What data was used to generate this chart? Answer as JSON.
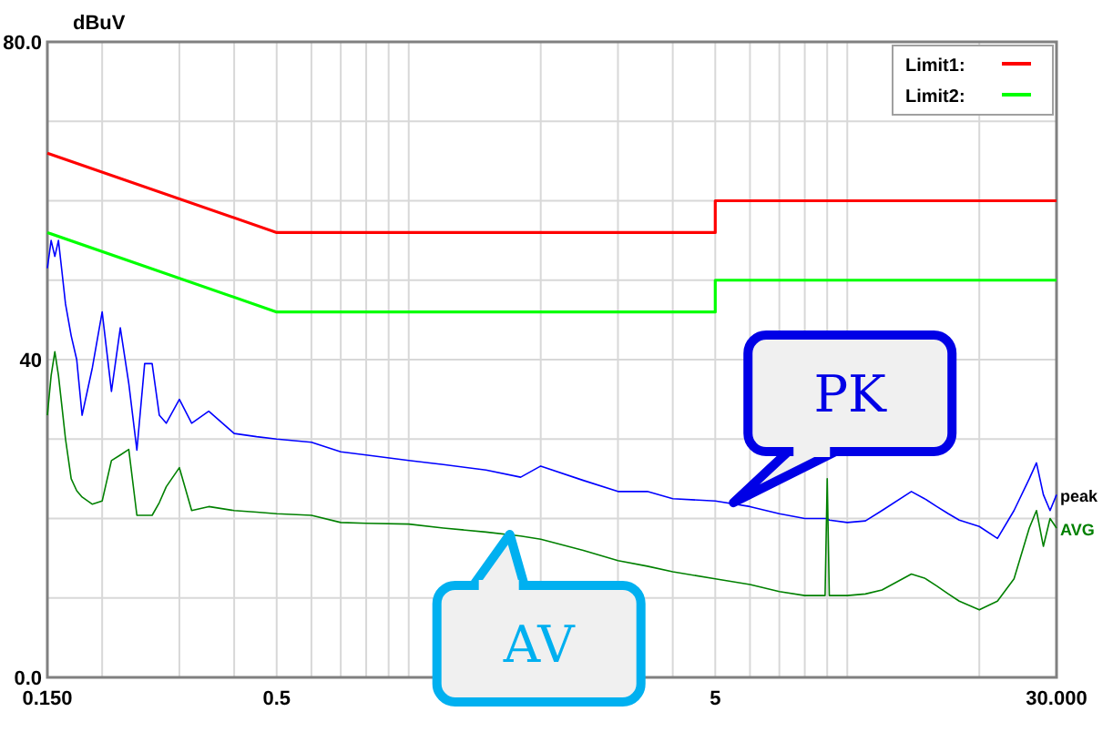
{
  "chart_data": {
    "type": "line",
    "ylabel": "dBuV",
    "log": "x",
    "grid": true,
    "legend": "top right",
    "xlim": [
      0.15,
      30
    ],
    "ylim": [
      0,
      80
    ],
    "xticks": [
      {
        "value": 0.15,
        "label": "0.150"
      },
      {
        "value": 0.2,
        "label": null
      },
      {
        "value": 0.3,
        "label": null
      },
      {
        "value": 0.4,
        "label": null
      },
      0.5,
      {
        "value": 0.6,
        "label": null
      },
      {
        "value": 0.7,
        "label": null
      },
      {
        "value": 0.8,
        "label": null
      },
      {
        "value": 0.9,
        "label": null
      },
      {
        "value": 1,
        "label": null
      },
      {
        "value": 2,
        "label": null
      },
      {
        "value": 3,
        "label": null
      },
      {
        "value": 4,
        "label": null
      },
      5,
      {
        "value": 6,
        "label": null
      },
      {
        "value": 7,
        "label": null
      },
      {
        "value": 8,
        "label": null
      },
      {
        "value": 9,
        "label": null
      },
      {
        "value": 10,
        "label": null
      },
      {
        "value": 20,
        "label": null
      },
      {
        "value": 30,
        "label": "30.000"
      }
    ],
    "yticks": [
      {
        "value": 0,
        "label": "0.0"
      },
      {
        "value": 10,
        "label": null
      },
      {
        "value": 20,
        "label": null
      },
      {
        "value": 30,
        "label": null
      },
      40,
      {
        "value": 50,
        "label": null
      },
      {
        "value": 60,
        "label": null
      },
      {
        "value": 70,
        "label": null
      },
      {
        "value": 80,
        "label": "80.0"
      }
    ],
    "x": [
      0.15,
      0.153,
      0.156,
      0.159,
      0.162,
      0.165,
      0.17,
      0.175,
      0.18,
      0.19,
      0.2,
      0.21,
      0.22,
      0.23,
      0.24,
      0.25,
      0.26,
      0.27,
      0.28,
      0.3,
      0.32,
      0.35,
      0.4,
      0.45,
      0.5,
      0.6,
      0.7,
      0.8,
      1,
      1.2,
      1.5,
      1.8,
      2,
      2.5,
      3,
      3.5,
      4,
      5,
      6,
      7,
      8,
      8.9,
      9,
      9.1,
      10,
      11,
      12,
      14,
      15,
      16,
      17,
      18,
      20,
      22,
      24,
      26,
      27,
      28,
      29,
      30
    ],
    "series": [
      {
        "name": "Limit1:",
        "color": "#ff0000",
        "x": [
          0.15,
          0.5,
          5,
          5,
          30
        ],
        "values": [
          66,
          56,
          56,
          60,
          60
        ]
      },
      {
        "name": "Limit2:",
        "color": "#00ff00",
        "x": [
          0.15,
          0.5,
          5,
          5,
          30
        ],
        "values": [
          56,
          46,
          46,
          50,
          50
        ]
      },
      {
        "name": "peak",
        "color": "#0000ff",
        "values": [
          51.5,
          55,
          53,
          55,
          51,
          47,
          43,
          40,
          33,
          39,
          46,
          36,
          44,
          37,
          28.6,
          39.5,
          39.5,
          33,
          32,
          35,
          32,
          33.5,
          30.7,
          30.3,
          30,
          29.6,
          28.4,
          28,
          27.3,
          26.8,
          26.1,
          25.2,
          26.6,
          24.8,
          23.4,
          23.4,
          22.5,
          22.2,
          21.5,
          20.6,
          20,
          20,
          20,
          19.8,
          19.5,
          19.7,
          21,
          23.4,
          22.5,
          21.5,
          20.6,
          19.8,
          19,
          17.5,
          21,
          25,
          27,
          23,
          21,
          23
        ]
      },
      {
        "name": "AVG",
        "color": "#008000",
        "values": [
          33,
          38,
          41,
          38,
          34,
          30,
          25,
          23.5,
          22.7,
          21.8,
          22.2,
          27.3,
          28,
          28.7,
          20.4,
          20.4,
          20.4,
          22,
          24,
          26.4,
          21,
          21.5,
          21,
          20.8,
          20.6,
          20.4,
          19.5,
          19.4,
          19.3,
          18.8,
          18.3,
          17.8,
          17.4,
          16,
          14.7,
          14,
          13.3,
          12.4,
          11.7,
          10.8,
          10.3,
          10.3,
          25,
          10.3,
          10.3,
          10.5,
          11,
          13,
          12.5,
          11.5,
          10.5,
          9.6,
          8.5,
          9.6,
          12.4,
          18.8,
          21,
          16.5,
          20,
          18.8
        ]
      }
    ],
    "annotations": [
      {
        "text": "PK",
        "x": 5.5,
        "y": 22
      },
      {
        "text": "AV",
        "x": 1.7,
        "y": 18
      }
    ]
  }
}
